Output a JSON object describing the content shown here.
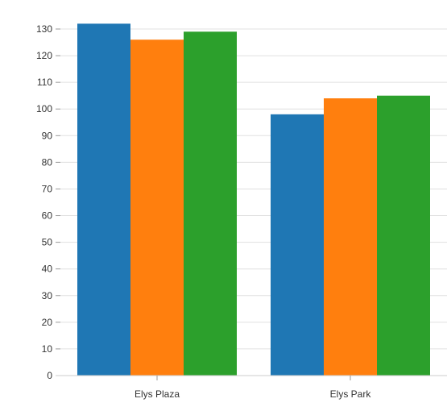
{
  "chart_data": {
    "type": "bar",
    "categories": [
      "Elys Plaza",
      "Elys Park"
    ],
    "series": [
      {
        "values": [
          132,
          98
        ],
        "color": "#1f77b4"
      },
      {
        "values": [
          126,
          104
        ],
        "color": "#ff7f0e"
      },
      {
        "values": [
          129,
          105
        ],
        "color": "#2ca02c"
      }
    ],
    "y_ticks": [
      0,
      10,
      20,
      30,
      40,
      50,
      60,
      70,
      80,
      90,
      100,
      110,
      120,
      130
    ],
    "ylim": [
      0,
      130
    ],
    "grid": true,
    "title": "",
    "xlabel": "",
    "ylabel": ""
  }
}
